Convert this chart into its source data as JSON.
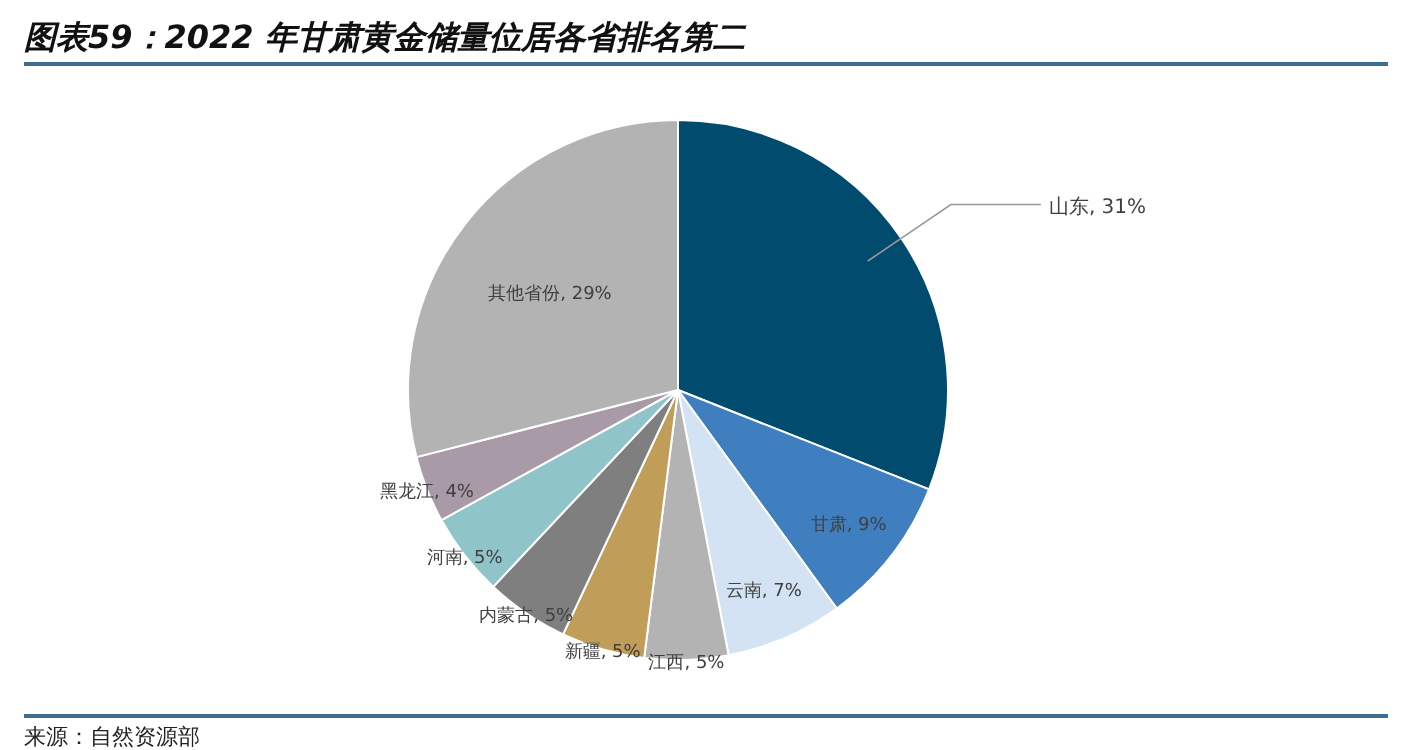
{
  "chart_data": {
    "type": "pie",
    "title": "图表59：2022 年甘肃黄金储量位居各省排名第二",
    "categories": [
      "山东",
      "甘肃",
      "云南",
      "江西",
      "新疆",
      "内蒙古",
      "河南",
      "黑龙江",
      "其他省份"
    ],
    "values": [
      31,
      9,
      7,
      5,
      5,
      5,
      5,
      4,
      29
    ],
    "colors": [
      "#004b6e",
      "#3f7fbf",
      "#d3e3f3",
      "#b3b3b3",
      "#c19d5a",
      "#7f7f7f",
      "#8fc4c9",
      "#a99aa8",
      "#b3b3b3"
    ],
    "value_labels": [
      ", 31%",
      ", 9%",
      ", 7%",
      ", 5%",
      ", 5%",
      ", 5%",
      ", 5%",
      ", 4%",
      ", 29%"
    ],
    "annotations": [
      "来源：自然资源部"
    ]
  }
}
